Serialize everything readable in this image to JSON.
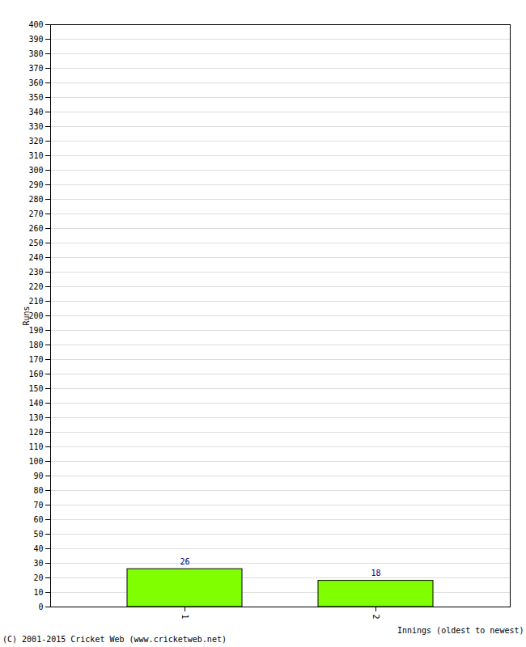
{
  "chart_data": {
    "type": "bar",
    "categories": [
      "1",
      "2"
    ],
    "values": [
      26,
      18
    ],
    "color": "#80ff00",
    "xlabel": "Innings (oldest to newest)",
    "ylabel": "Runs",
    "caption": "(C) 2001-2015 Cricket Web (www.cricketweb.net)",
    "ylim": [
      0,
      400
    ],
    "yticks": [
      0,
      10,
      20,
      30,
      40,
      50,
      60,
      70,
      80,
      90,
      100,
      110,
      120,
      130,
      140,
      150,
      160,
      170,
      180,
      190,
      200,
      210,
      220,
      230,
      240,
      250,
      260,
      270,
      280,
      290,
      300,
      310,
      320,
      330,
      340,
      350,
      360,
      370,
      380,
      390,
      400
    ],
    "grid": true,
    "data_labels": true
  }
}
